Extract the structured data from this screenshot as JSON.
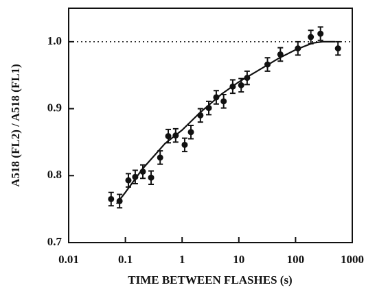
{
  "chart_data": {
    "type": "scatter",
    "x_label": "TIME BETWEEN FLASHES (s)",
    "y_label": "A518 (FL2) / A518 (FL1)",
    "xscale": "log",
    "xlim": [
      0.01,
      1000
    ],
    "xticks": [
      0.01,
      0.1,
      1,
      10,
      100,
      1000
    ],
    "ylim": [
      0.7,
      1.05
    ],
    "yticks": [
      0.7,
      0.8,
      0.9,
      {
        "value": 1,
        "label": "1.0"
      }
    ],
    "reference_line": 1,
    "color": "#111111",
    "points": {
      "x": [
        0.056,
        0.079,
        0.113,
        0.149,
        0.203,
        0.284,
        0.41,
        0.57,
        0.77,
        1.11,
        1.43,
        2.1,
        2.95,
        4.0,
        5.4,
        7.8,
        11,
        14,
        32,
        54,
        110,
        186,
        275,
        560
      ],
      "values": [
        0.765,
        0.762,
        0.793,
        0.798,
        0.806,
        0.797,
        0.827,
        0.859,
        0.86,
        0.846,
        0.865,
        0.89,
        0.901,
        0.917,
        0.911,
        0.933,
        0.935,
        0.946,
        0.966,
        0.981,
        0.99,
        1.007,
        1.012,
        0.99
      ],
      "errors": [
        0.01,
        0.01,
        0.01,
        0.01,
        0.01,
        0.01,
        0.01,
        0.01,
        0.01,
        0.01,
        0.01,
        0.01,
        0.01,
        0.01,
        0.01,
        0.01,
        0.01,
        0.01,
        0.01,
        0.01,
        0.01,
        0.01,
        0.01,
        0.01
      ]
    },
    "fit": {
      "x": [
        0.07,
        0.1,
        0.2,
        0.5,
        1,
        2,
        5,
        10,
        20,
        50,
        100,
        200,
        300,
        500
      ],
      "values": [
        0.758,
        0.775,
        0.81,
        0.848,
        0.868,
        0.893,
        0.922,
        0.94,
        0.955,
        0.975,
        0.988,
        0.998,
        1.0,
        1.0
      ]
    }
  }
}
